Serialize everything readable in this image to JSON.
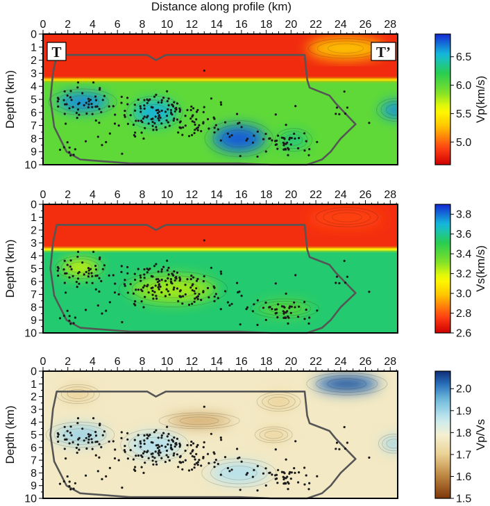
{
  "figure_title": "Distance along profile (km)",
  "chart_data": [
    {
      "type": "heatmap",
      "panel": "vp",
      "title": "",
      "xlabel": "Distance along profile (km)",
      "ylabel": "Depth (km)",
      "xlim": [
        0,
        28.6
      ],
      "ylim": [
        10,
        0
      ],
      "x_ticks": [
        "0",
        "2",
        "4",
        "6",
        "8",
        "10",
        "12",
        "14",
        "16",
        "18",
        "20",
        "22",
        "24",
        "26",
        "28"
      ],
      "y_ticks": [
        "0",
        "1",
        "2",
        "3",
        "4",
        "5",
        "6",
        "7",
        "8",
        "9",
        "10"
      ],
      "colorbar": {
        "label": "Vp(km/s)",
        "range": [
          4.6,
          6.9
        ],
        "ticks": [
          "5.0",
          "5.5",
          "6.0",
          "6.5"
        ],
        "tick_values": [
          5.0,
          5.5,
          6.0,
          6.5
        ],
        "colormap": "red-yellow-green-blue"
      },
      "upper_layer": {
        "depth_bottom_km": 3.5,
        "value": 4.8
      },
      "base_value": 6.0,
      "anomalies": [
        {
          "x": 3.2,
          "z": 5.2,
          "rx": 2.2,
          "rz": 0.8,
          "dv": 0.6
        },
        {
          "x": 9.0,
          "z": 6.0,
          "rx": 1.8,
          "rz": 1.0,
          "dv": 0.5
        },
        {
          "x": 15.8,
          "z": 8.0,
          "rx": 2.2,
          "rz": 1.1,
          "dv": 0.7
        },
        {
          "x": 20.2,
          "z": 8.1,
          "rx": 1.2,
          "rz": 0.7,
          "dv": 0.3
        },
        {
          "x": 28.4,
          "z": 5.8,
          "rx": 1.2,
          "rz": 0.7,
          "dv": 0.6
        },
        {
          "x": 24.4,
          "z": 1.1,
          "rx": 2.4,
          "rz": 0.6,
          "dv": 0.5
        }
      ],
      "labels": {
        "left": "T",
        "right": "T’"
      }
    },
    {
      "type": "heatmap",
      "panel": "vs",
      "title": "",
      "xlabel": "",
      "ylabel": "Depth (km)",
      "xlim": [
        0,
        28.6
      ],
      "ylim": [
        10,
        0
      ],
      "x_ticks": [
        "0",
        "2",
        "4",
        "6",
        "8",
        "10",
        "12",
        "14",
        "16",
        "18",
        "20",
        "22",
        "24",
        "26",
        "28"
      ],
      "y_ticks": [
        "0",
        "1",
        "2",
        "3",
        "4",
        "5",
        "6",
        "7",
        "8",
        "9",
        "10"
      ],
      "colorbar": {
        "label": "Vs(km/s)",
        "range": [
          2.6,
          3.9
        ],
        "ticks": [
          "2.6",
          "2.8",
          "3.0",
          "3.2",
          "3.4",
          "3.6",
          "3.8"
        ],
        "tick_values": [
          2.6,
          2.8,
          3.0,
          3.2,
          3.4,
          3.6,
          3.8
        ],
        "colormap": "red-yellow-green-blue"
      },
      "upper_layer": {
        "depth_bottom_km": 3.5,
        "value": 2.72
      },
      "base_value": 3.55,
      "anomalies": [
        {
          "x": 3.0,
          "z": 4.9,
          "rx": 1.6,
          "rz": 0.7,
          "dv": -0.3
        },
        {
          "x": 10.5,
          "z": 6.6,
          "rx": 3.5,
          "rz": 1.1,
          "dv": -0.25
        },
        {
          "x": 19.5,
          "z": 8.1,
          "rx": 2.2,
          "rz": 0.6,
          "dv": -0.15
        },
        {
          "x": 24.5,
          "z": 1.0,
          "rx": 2.0,
          "rz": 0.6,
          "dv": 0.08
        }
      ]
    },
    {
      "type": "heatmap",
      "panel": "vpvs",
      "title": "",
      "xlabel": "",
      "ylabel": "Depth (km)",
      "xlim": [
        0,
        28.6
      ],
      "ylim": [
        10,
        0
      ],
      "x_ticks": [
        "0",
        "2",
        "4",
        "6",
        "8",
        "10",
        "12",
        "14",
        "16",
        "18",
        "20",
        "22",
        "24",
        "26",
        "28"
      ],
      "y_ticks": [
        "0",
        "1",
        "2",
        "3",
        "4",
        "5",
        "6",
        "7",
        "8",
        "9",
        "10"
      ],
      "colorbar": {
        "label": "Vp/Vs",
        "range": [
          1.5,
          2.08
        ],
        "ticks": [
          "1.5",
          "1.6",
          "1.7",
          "1.8",
          "1.9",
          "2.0"
        ],
        "tick_values": [
          1.5,
          1.6,
          1.7,
          1.8,
          1.9,
          2.0
        ],
        "colormap": "brown-cream-blue"
      },
      "base_value": 1.77,
      "anomalies": [
        {
          "x": 24.5,
          "z": 1.0,
          "rx": 2.6,
          "rz": 0.7,
          "dv": 0.25
        },
        {
          "x": 3.0,
          "z": 5.0,
          "rx": 2.2,
          "rz": 0.8,
          "dv": 0.12
        },
        {
          "x": 9.0,
          "z": 5.8,
          "rx": 2.2,
          "rz": 1.0,
          "dv": 0.1
        },
        {
          "x": 15.8,
          "z": 8.0,
          "rx": 2.4,
          "rz": 0.9,
          "dv": 0.1
        },
        {
          "x": 12.6,
          "z": 3.9,
          "rx": 2.6,
          "rz": 0.5,
          "dv": -0.12
        },
        {
          "x": 2.8,
          "z": 1.8,
          "rx": 1.4,
          "rz": 0.6,
          "dv": -0.06
        },
        {
          "x": 19.0,
          "z": 2.4,
          "rx": 1.4,
          "rz": 0.6,
          "dv": -0.06
        },
        {
          "x": 18.6,
          "z": 5.0,
          "rx": 1.2,
          "rz": 0.5,
          "dv": -0.06
        },
        {
          "x": 28.3,
          "z": 5.7,
          "rx": 1.0,
          "rz": 0.6,
          "dv": 0.12
        }
      ]
    }
  ],
  "outline_km": [
    [
      1.1,
      1.6
    ],
    [
      8.4,
      1.6
    ],
    [
      9.1,
      2.0
    ],
    [
      9.9,
      1.6
    ],
    [
      21.1,
      1.6
    ],
    [
      21.3,
      3.5
    ],
    [
      21.5,
      4.1
    ],
    [
      23.1,
      4.7
    ],
    [
      23.6,
      5.3
    ],
    [
      25.2,
      6.9
    ],
    [
      24.0,
      8.0
    ],
    [
      23.2,
      9.0
    ],
    [
      22.5,
      9.6
    ],
    [
      21.3,
      10.0
    ],
    [
      18.4,
      10.0
    ],
    [
      15.8,
      9.9
    ],
    [
      11.6,
      9.9
    ],
    [
      10.8,
      9.9
    ],
    [
      7.0,
      9.9
    ],
    [
      3.0,
      9.6
    ],
    [
      1.9,
      9.0
    ],
    [
      0.9,
      7.1
    ],
    [
      0.6,
      5.0
    ],
    [
      0.8,
      3.0
    ],
    [
      1.1,
      1.6
    ]
  ],
  "events": {
    "clusters": [
      {
        "x": 3.2,
        "z": 5.2,
        "sx": 1.2,
        "sz": 0.6,
        "n": 40
      },
      {
        "x": 9.0,
        "z": 6.0,
        "sx": 1.4,
        "sz": 0.8,
        "n": 95
      },
      {
        "x": 12.3,
        "z": 6.8,
        "sx": 1.4,
        "sz": 0.9,
        "n": 45
      },
      {
        "x": 16.0,
        "z": 7.3,
        "sx": 1.6,
        "sz": 0.9,
        "n": 22
      },
      {
        "x": 19.6,
        "z": 8.4,
        "sx": 0.9,
        "sz": 0.5,
        "n": 40
      },
      {
        "x": 5.3,
        "z": 6.6,
        "sx": 1.2,
        "sz": 1.1,
        "n": 22
      },
      {
        "x": 2.0,
        "z": 8.9,
        "sx": 0.6,
        "sz": 0.5,
        "n": 8
      },
      {
        "x": 24.0,
        "z": 5.8,
        "sx": 0.4,
        "sz": 0.7,
        "n": 5
      }
    ],
    "outliers": [
      [
        13.0,
        2.8
      ],
      [
        24.3,
        4.4
      ],
      [
        26.3,
        6.8
      ]
    ]
  }
}
